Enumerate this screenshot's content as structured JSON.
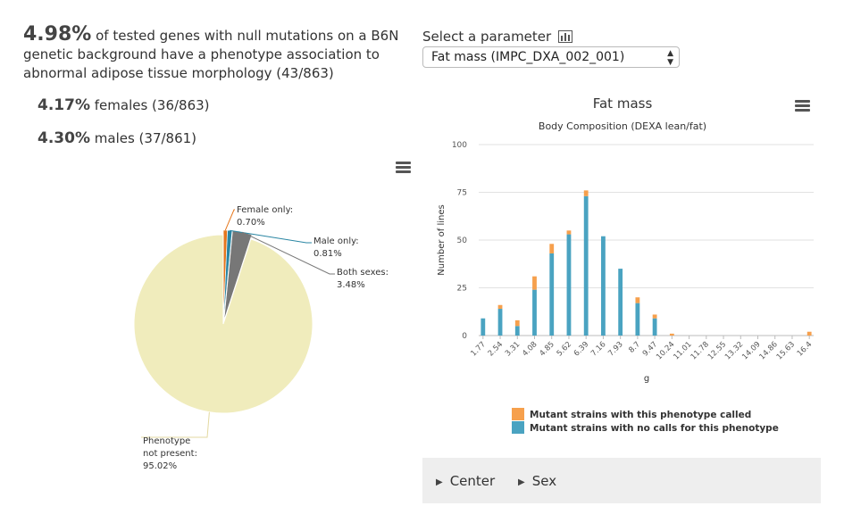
{
  "summary": {
    "percent": "4.98%",
    "text": "of tested genes with null mutations on a B6N genetic background have a phenotype association to abnormal adipose tissue morphology (43/863)",
    "female_percent": "4.17%",
    "female_text": "females (36/863)",
    "male_percent": "4.30%",
    "male_text": "males (37/861)"
  },
  "parameter": {
    "label": "Select a parameter",
    "selected": "Fat mass (IMPC_DXA_002_001)"
  },
  "filters": [
    {
      "label": "Center"
    },
    {
      "label": "Sex"
    }
  ],
  "colors": {
    "orange": "#f6a04d",
    "blue": "#4aa3c1",
    "pie_bg": "#f0ecbc",
    "pie_female": "#e5761c",
    "pie_male": "#2a86a3",
    "pie_both": "#777777"
  },
  "chart_data": [
    {
      "type": "pie",
      "slices": [
        {
          "label": "Female only:",
          "value": 0.7,
          "value_label": "0.70%",
          "color": "#e5761c"
        },
        {
          "label": "Male only:",
          "value": 0.81,
          "value_label": "0.81%",
          "color": "#2a86a3"
        },
        {
          "label": "Both sexes:",
          "value": 3.48,
          "value_label": "3.48%",
          "color": "#777777"
        },
        {
          "label": "Phenotype not present:",
          "value": 95.02,
          "value_label": "95.02%",
          "color": "#f0ecbc"
        }
      ]
    },
    {
      "type": "bar",
      "stacked": true,
      "title": "Fat mass",
      "subtitle": "Body Composition (DEXA lean/fat)",
      "xlabel": "g",
      "ylabel": "Number of lines",
      "ylim": [
        0,
        100
      ],
      "yticks": [
        0,
        25,
        50,
        75,
        100
      ],
      "categories": [
        "1.77",
        "2.54",
        "3.31",
        "4.08",
        "4.85",
        "5.62",
        "6.39",
        "7.16",
        "7.93",
        "8.7",
        "9.47",
        "10.24",
        "11.01",
        "11.78",
        "12.55",
        "13.32",
        "14.09",
        "14.86",
        "15.63",
        "16.4"
      ],
      "x": [
        1.77,
        2.15,
        2.54,
        2.92,
        3.31,
        3.69,
        4.08,
        4.47,
        4.85,
        5.24,
        5.62,
        6.01,
        6.39,
        6.78,
        7.16,
        7.55,
        7.93,
        8.32,
        8.7,
        9.09,
        9.47,
        9.86,
        10.24,
        10.63,
        11.01,
        11.4,
        11.78,
        12.17,
        12.55,
        12.94,
        13.32,
        13.71,
        14.09,
        14.48,
        14.86,
        15.25,
        15.63,
        16.02,
        16.4
      ],
      "series": [
        {
          "name": "Mutant strains with no calls for this phenotype",
          "color": "#4aa3c1",
          "values": [
            9,
            0,
            14,
            0,
            5,
            0,
            24,
            0,
            43,
            0,
            53,
            0,
            73,
            0,
            52,
            0,
            35,
            0,
            17,
            0,
            9,
            0,
            0,
            0,
            0,
            0,
            0,
            0,
            0,
            0,
            0,
            0,
            0,
            0,
            0,
            0,
            0,
            0,
            0
          ]
        },
        {
          "name": "Mutant strains with this phenotype called",
          "color": "#f6a04d",
          "values": [
            0,
            0,
            2,
            0,
            3,
            0,
            7,
            0,
            5,
            0,
            2,
            0,
            3,
            0,
            0,
            0,
            0,
            0,
            3,
            0,
            2,
            0,
            1,
            0,
            0,
            0,
            0,
            0,
            0,
            0,
            0,
            0,
            0,
            0,
            0,
            0,
            0,
            0,
            2
          ]
        }
      ],
      "legend": [
        "Mutant strains with this phenotype called",
        "Mutant strains with no calls for this phenotype"
      ],
      "legend_position": "bottom"
    }
  ]
}
